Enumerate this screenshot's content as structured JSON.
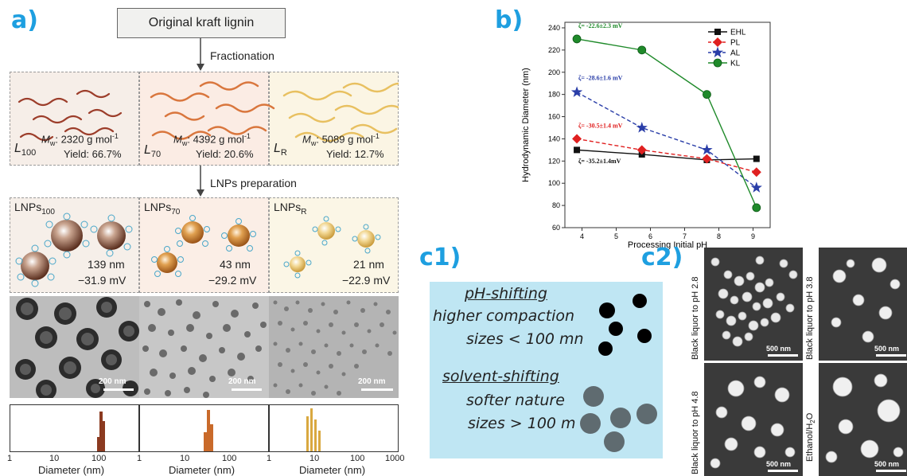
{
  "panel_a": {
    "letter": "a)",
    "top_box": "Original kraft lignin",
    "step1": "Fractionation",
    "step2": "LNPs preparation",
    "fractions": [
      {
        "sym": "L",
        "sub": "100",
        "mw_label": "M",
        "mw_sub": "w",
        "mw_value": ": 2320 g mol",
        "exp": "-1",
        "yield": "Yield: 66.7%"
      },
      {
        "sym": "L",
        "sub": "70",
        "mw_label": "M",
        "mw_sub": "w",
        "mw_value": ": 4392 g mol",
        "exp": "-1",
        "yield": "Yield: 20.6%"
      },
      {
        "sym": "L",
        "sub": "R",
        "mw_label": "M",
        "mw_sub": "w",
        "mw_value": ": 5089 g mol",
        "exp": "-1",
        "yield": "Yield: 12.7%"
      }
    ],
    "lnps": [
      {
        "name": "LNPs",
        "sub": "100",
        "size": "139 nm",
        "zeta": "−31.9 mV"
      },
      {
        "name": "LNPs",
        "sub": "70",
        "size": "43 nm",
        "zeta": "−29.2 mV"
      },
      {
        "name": "LNPs",
        "sub": "R",
        "size": "21 nm",
        "zeta": "−22.9 mV"
      }
    ],
    "tem_scale": "200 nm",
    "hist_xlabel": "Diameter (nm)",
    "hist_ticks": [
      "1",
      "10",
      "100",
      "1",
      "10",
      "100",
      "1",
      "10",
      "100",
      "1000"
    ],
    "colors": {
      "brown": "#a0522d",
      "orange": "#d98a3a",
      "yellow": "#e6c15a",
      "panel_bg_1": "#f7efe9",
      "panel_bg_2": "#fbeee6",
      "panel_bg_3": "#fbf6e6"
    }
  },
  "panel_b": {
    "letter": "b)",
    "chart_data": {
      "type": "line",
      "xlabel": "Processing Initial pH",
      "ylabel": "Hydrodynamic Diameter (nm)",
      "xlim": [
        3.5,
        9.5
      ],
      "ylim": [
        60,
        245
      ],
      "xticks": [
        4,
        5,
        6,
        7,
        8,
        9
      ],
      "yticks": [
        60,
        80,
        100,
        120,
        140,
        160,
        180,
        200,
        220,
        240
      ],
      "legend_position": "top-right",
      "series": [
        {
          "name": "EHL",
          "color": "#111111",
          "dash": "solid",
          "marker": "square",
          "x": [
            3.85,
            5.75,
            7.65,
            9.1
          ],
          "y": [
            130,
            126,
            121,
            122
          ]
        },
        {
          "name": "PL",
          "color": "#e02020",
          "dash": "dashed",
          "marker": "diamond",
          "x": [
            3.85,
            5.75,
            7.65,
            9.1
          ],
          "y": [
            140,
            130,
            122,
            110
          ]
        },
        {
          "name": "AL",
          "color": "#2a3ea8",
          "dash": "dashed",
          "marker": "star",
          "x": [
            3.85,
            5.75,
            7.65,
            9.1
          ],
          "y": [
            182,
            150,
            130,
            96
          ]
        },
        {
          "name": "KL",
          "color": "#1f8a2a",
          "dash": "solid",
          "marker": "circle",
          "x": [
            3.85,
            5.75,
            7.65,
            9.1
          ],
          "y": [
            230,
            220,
            180,
            78
          ]
        }
      ],
      "annotations": [
        {
          "text": "ζ= -22.6±2.3 mV",
          "color": "#1f8a2a",
          "x": 3.85,
          "y": 240
        },
        {
          "text": "ζ= -28.6±1.6 mV",
          "color": "#2a3ea8",
          "x": 3.85,
          "y": 193
        },
        {
          "text": "ζ= -30.5±1.4 mV",
          "color": "#e02020",
          "x": 3.85,
          "y": 150
        },
        {
          "text": "ζ= -35.2±1.4mV",
          "color": "#111111",
          "x": 3.85,
          "y": 118
        }
      ]
    }
  },
  "panel_c1": {
    "letter": "c1)",
    "ph_title": "pH-shifting",
    "ph_line1": "higher compaction",
    "ph_line2": "sizes < 100 mn",
    "solv_title": "solvent-shifting",
    "solv_line1": "softer nature",
    "solv_line2": "sizes > 100 m"
  },
  "panel_c2": {
    "letter": "c2)",
    "images": [
      {
        "label": "Black liquor to pH 2.8",
        "scale": "500 nm"
      },
      {
        "label": "Black liquor to pH 3.8",
        "scale": "500 nm"
      },
      {
        "label": "Black liquor to pH 4.8",
        "scale": "500 nm"
      },
      {
        "label": "Ethanol/H",
        "label_sub": "2",
        "label_tail": "O",
        "scale": "500 nm"
      }
    ]
  }
}
